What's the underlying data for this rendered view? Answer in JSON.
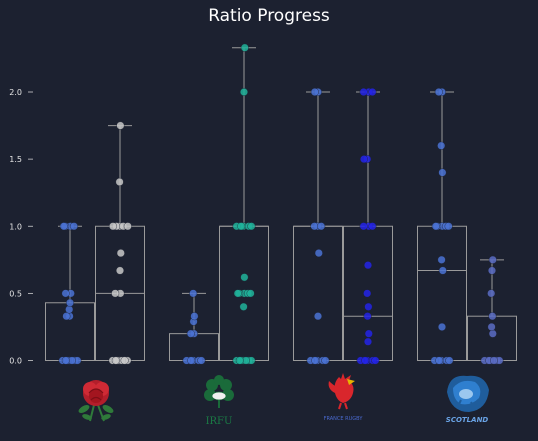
{
  "chart_data": {
    "type": "box-strip",
    "title": "Ratio Progress",
    "xlabel": "",
    "ylabel": "",
    "ylim": [
      0,
      2.45
    ],
    "yticks": [
      0.0,
      0.5,
      1.0,
      1.5,
      2.0
    ],
    "ytick_labels": [
      "0.0",
      "0.5",
      "1.0",
      "1.5",
      "2.0"
    ],
    "grid": false,
    "legend": "none",
    "categories": [
      "England",
      "Ireland",
      "France",
      "Scotland"
    ],
    "category_logos": [
      "england-rose-logo",
      "irfu-shamrock-logo",
      "france-rugby-rooster-logo",
      "scotland-thistle-logo"
    ],
    "logo_text": {
      "ireland": "IRFU",
      "france": "FRANCE RUGBY",
      "scotland": "SCOTLAND"
    },
    "series": [
      {
        "team": "England",
        "group": 0,
        "color": "#4a72d4",
        "q1": 0.0,
        "median": 0.0,
        "q3": 0.43,
        "whisker_low": 0.0,
        "whisker_high": 1.0,
        "points": [
          0,
          0,
          0,
          0,
          0,
          0,
          0,
          0,
          0.33,
          0.33,
          0.38,
          0.43,
          0.5,
          0.5,
          1,
          1,
          1,
          1
        ]
      },
      {
        "team": "England",
        "group": 1,
        "color": "#c8c8c8",
        "q1": 0.0,
        "median": 0.5,
        "q3": 1.0,
        "whisker_low": 0.0,
        "whisker_high": 1.75,
        "points": [
          0,
          0,
          0,
          0,
          0,
          0,
          0,
          0,
          0,
          0.5,
          0.5,
          0.67,
          0.8,
          1,
          1,
          1,
          1,
          1,
          1.33,
          1.75
        ]
      },
      {
        "team": "Ireland",
        "group": 0,
        "color": "#4a72d4",
        "q1": 0.0,
        "median": 0.0,
        "q3": 0.2,
        "whisker_low": 0.0,
        "whisker_high": 0.5,
        "points": [
          0,
          0,
          0,
          0,
          0,
          0,
          0.2,
          0.2,
          0.29,
          0.33,
          0.5
        ]
      },
      {
        "team": "Ireland",
        "group": 1,
        "color": "#20b39a",
        "q1": 0.0,
        "median": 1.0,
        "q3": 1.0,
        "whisker_low": 0.0,
        "whisker_high": 2.33,
        "points": [
          0,
          0,
          0,
          0,
          0,
          0,
          0,
          0,
          0.4,
          0.5,
          0.5,
          0.5,
          0.5,
          0.5,
          0.62,
          1,
          1,
          1,
          1,
          1,
          1,
          2,
          2.33
        ]
      },
      {
        "team": "France",
        "group": 0,
        "color": "#4a72d4",
        "q1": 0.0,
        "median": 1.0,
        "q3": 1.0,
        "whisker_low": 0.0,
        "whisker_high": 2.0,
        "points": [
          0,
          0,
          0,
          0,
          0,
          0,
          0.33,
          0.8,
          1,
          1,
          1,
          2,
          2
        ]
      },
      {
        "team": "France",
        "group": 1,
        "color": "#2323e6",
        "q1": 0.0,
        "median": 0.33,
        "q3": 1.0,
        "whisker_low": 0.0,
        "whisker_high": 2.0,
        "points": [
          0,
          0,
          0,
          0,
          0,
          0,
          0.14,
          0.2,
          0.33,
          0.4,
          0.5,
          0.71,
          1,
          1,
          1,
          1.5,
          1.5,
          2,
          2,
          2
        ]
      },
      {
        "team": "Scotland",
        "group": 0,
        "color": "#4a72d4",
        "q1": 0.0,
        "median": 0.67,
        "q3": 1.0,
        "whisker_low": 0.0,
        "whisker_high": 2.0,
        "points": [
          0,
          0,
          0,
          0,
          0,
          0,
          0.25,
          0.67,
          0.75,
          1,
          1,
          1,
          1,
          1,
          1.4,
          1.6,
          2,
          2
        ]
      },
      {
        "team": "Scotland",
        "group": 1,
        "color": "#5a6cc4",
        "q1": 0.0,
        "median": 0.0,
        "q3": 0.33,
        "whisker_low": 0.0,
        "whisker_high": 0.75,
        "points": [
          0,
          0,
          0,
          0,
          0,
          0,
          0,
          0.2,
          0.25,
          0.33,
          0.5,
          0.67,
          0.75
        ]
      }
    ]
  }
}
